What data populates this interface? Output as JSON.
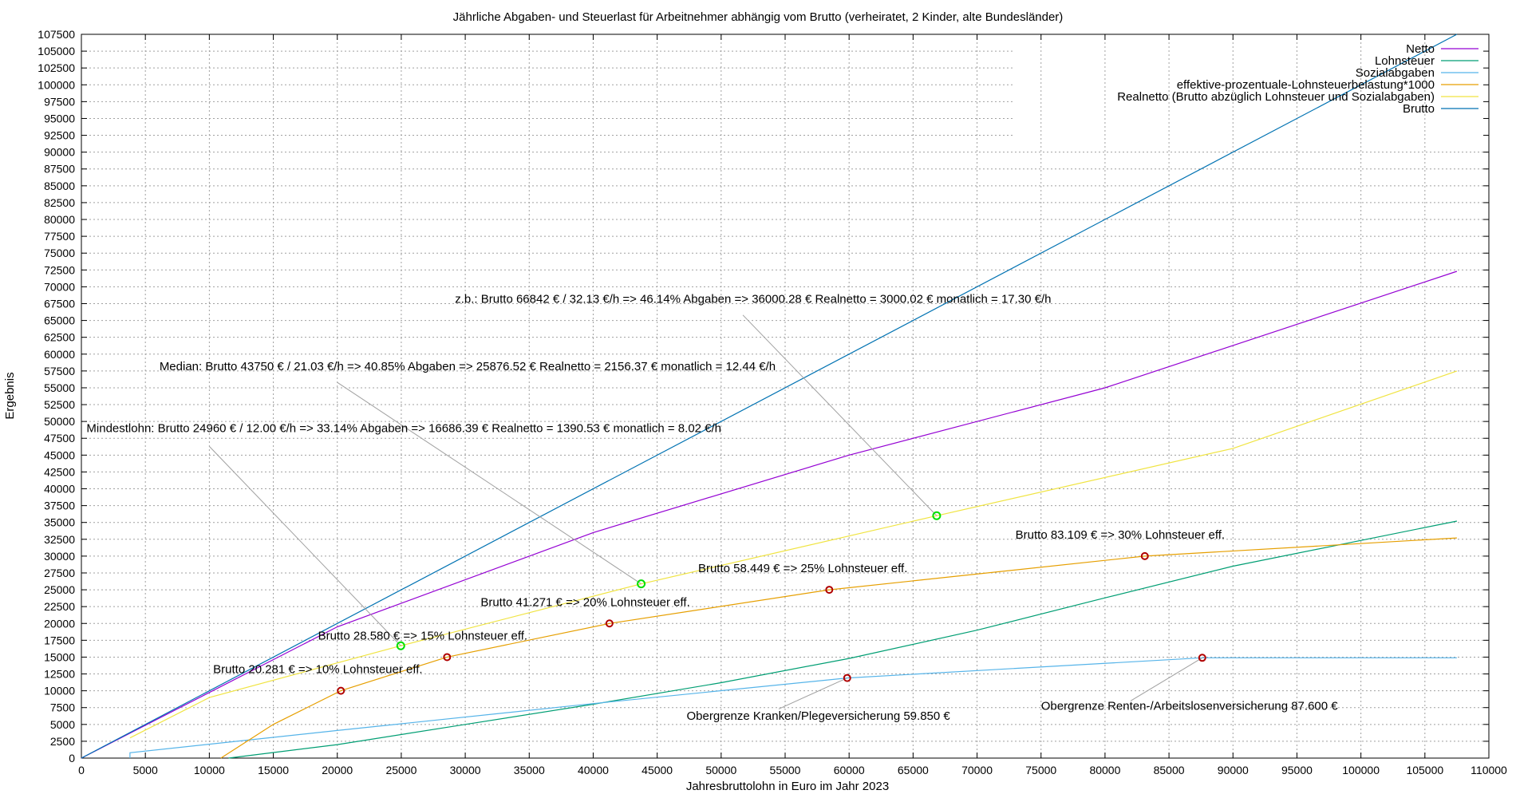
{
  "chart_data": {
    "type": "line",
    "title": "Jährliche Abgaben- und Steuerlast für Arbeitnehmer abhängig vom Brutto (verheiratet, 2 Kinder, alte Bundesländer)",
    "xlabel": "Jahresbruttolohn in Euro im Jahr 2023",
    "ylabel": "Ergebnis",
    "xlim": [
      0,
      110000
    ],
    "ylim": [
      0,
      107500
    ],
    "xticks": [
      0,
      5000,
      10000,
      15000,
      20000,
      25000,
      30000,
      35000,
      40000,
      45000,
      50000,
      55000,
      60000,
      65000,
      70000,
      75000,
      80000,
      85000,
      90000,
      95000,
      100000,
      105000,
      110000
    ],
    "yticks": [
      0,
      2500,
      5000,
      7500,
      10000,
      12500,
      15000,
      17500,
      20000,
      22500,
      25000,
      27500,
      30000,
      32500,
      35000,
      37500,
      40000,
      42500,
      45000,
      47500,
      50000,
      52500,
      55000,
      57500,
      60000,
      62500,
      65000,
      67500,
      70000,
      72500,
      75000,
      77500,
      80000,
      82500,
      85000,
      87500,
      90000,
      92500,
      95000,
      97500,
      100000,
      102500,
      105000,
      107500
    ],
    "grid": true,
    "legend_position": "top-right",
    "series": [
      {
        "name": "Netto",
        "color": "#9400d3",
        "x": [
          0,
          20000,
          40000,
          60000,
          80000,
          107500
        ],
        "y": [
          0,
          19500,
          33500,
          45000,
          55000,
          72300
        ]
      },
      {
        "name": "Lohnsteuer",
        "color": "#009e73",
        "x": [
          11500,
          20000,
          30000,
          40000,
          50000,
          60000,
          70000,
          80000,
          90000,
          107500
        ],
        "y": [
          0,
          2000,
          5000,
          8000,
          11200,
          14800,
          19000,
          23800,
          28500,
          35200
        ]
      },
      {
        "name": "Sozialabgaben",
        "color": "#56b4e9",
        "x": [
          3800,
          3800,
          20000,
          40000,
          59850,
          87600,
          107500
        ],
        "y": [
          0,
          800,
          4100,
          8100,
          11900,
          14900,
          14900
        ]
      },
      {
        "name": "effektive-prozentuale-Lohnsteuerbelastung*1000",
        "color": "#e69f00",
        "x": [
          10900,
          15000,
          20281,
          28580,
          41271,
          58449,
          83109,
          107500
        ],
        "y": [
          0,
          5000,
          10000,
          15000,
          20000,
          25000,
          30000,
          32700
        ]
      },
      {
        "name": "Realnetto (Brutto abzüglich Lohnsteuer und Sozialabgaben)",
        "color": "#f0e442",
        "x": [
          3800,
          10000,
          24960,
          43750,
          66842,
          90000,
          107500
        ],
        "y": [
          3000,
          9000,
          16686,
          25877,
          36000,
          46000,
          57500
        ]
      },
      {
        "name": "Brutto",
        "color": "#0072b2",
        "x": [
          0,
          107500
        ],
        "y": [
          0,
          107500
        ]
      }
    ],
    "markers": [
      {
        "kind": "lohnsteuer",
        "x": 20281,
        "y": 10000
      },
      {
        "kind": "lohnsteuer",
        "x": 28580,
        "y": 15000
      },
      {
        "kind": "lohnsteuer",
        "x": 41271,
        "y": 20000
      },
      {
        "kind": "lohnsteuer",
        "x": 58449,
        "y": 25000
      },
      {
        "kind": "lohnsteuer",
        "x": 83109,
        "y": 30000
      },
      {
        "kind": "obergrenze",
        "x": 59850,
        "y": 11900
      },
      {
        "kind": "obergrenze",
        "x": 87600,
        "y": 14900
      },
      {
        "kind": "realnetto",
        "x": 24960,
        "y": 16686
      },
      {
        "kind": "realnetto",
        "x": 43750,
        "y": 25877
      },
      {
        "kind": "realnetto",
        "x": 66842,
        "y": 36000
      }
    ],
    "annotations": [
      {
        "text": "Brutto 20.281 € => 10% Lohnsteuer eff.",
        "x": 10300,
        "y": 12600,
        "anchor": "start"
      },
      {
        "text": "Brutto 28.580 € => 15% Lohnsteuer eff.",
        "x": 18500,
        "y": 17600,
        "anchor": "start"
      },
      {
        "text": "Brutto 41.271 € => 20% Lohnsteuer eff.",
        "x": 31200,
        "y": 22600,
        "anchor": "start"
      },
      {
        "text": "Brutto 58.449 € => 25% Lohnsteuer eff.",
        "x": 48200,
        "y": 27600,
        "anchor": "start"
      },
      {
        "text": "Brutto 83.109 € => 30% Lohnsteuer eff.",
        "x": 73000,
        "y": 32600,
        "anchor": "start"
      },
      {
        "text": "Obergrenze Kranken/Plegeversicherung 59.850 €",
        "x": 47300,
        "y": 5700,
        "anchor": "start",
        "line_to": [
          54500,
          7300
        ]
      },
      {
        "text": "Obergrenze Renten-/Arbeitslosenversicherung 87.600 €",
        "x": 75000,
        "y": 7200,
        "anchor": "start",
        "line_to": [
          82000,
          8500
        ]
      },
      {
        "text": "Mindestlohn: Brutto 24960 € / 12.00 €/h => 33.14% Abgaben => 16686.39 € Realnetto = 1390.53 € monatlich = 8.02 €/h",
        "x": 400,
        "y": 48400,
        "anchor": "start",
        "line_to": [
          10000,
          46300
        ]
      },
      {
        "text": "Median: Brutto 43750 € / 21.03 €/h => 40.85% Abgaben => 25876.52 € Realnetto = 2156.37 € monatlich = 12.44 €/h",
        "x": 6100,
        "y": 57600,
        "anchor": "start",
        "line_to": [
          20000,
          55800
        ]
      },
      {
        "text": "z.b.: Brutto 66842 € / 32.13 €/h => 46.14% Abgaben => 36000.28 € Realnetto = 3000.02 € monatlich = 17.30 €/h",
        "x": 29200,
        "y": 67600,
        "anchor": "start",
        "line_to": [
          51700,
          65800
        ]
      }
    ]
  }
}
